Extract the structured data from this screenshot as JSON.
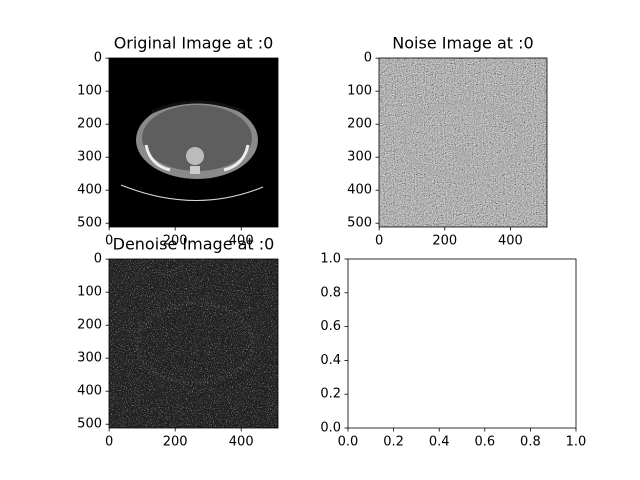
{
  "chart_data": [
    {
      "type": "image",
      "title": "Original Image at :0",
      "xlim": [
        -0.5,
        511.5
      ],
      "ylim": [
        511.5,
        -0.5
      ],
      "xticks": [
        0,
        200,
        400
      ],
      "yticks": [
        0,
        100,
        200,
        300,
        400,
        500
      ]
    },
    {
      "type": "image",
      "title": "Noise Image at :0",
      "xlim": [
        -0.5,
        511.5
      ],
      "ylim": [
        511.5,
        -0.5
      ],
      "xticks": [
        0,
        200,
        400
      ],
      "yticks": [
        0,
        100,
        200,
        300,
        400,
        500
      ]
    },
    {
      "type": "image",
      "title": "Denoise Image at :0",
      "xlim": [
        -0.5,
        511.5
      ],
      "ylim": [
        511.5,
        -0.5
      ],
      "xticks": [
        0,
        200,
        400
      ],
      "yticks": [
        0,
        100,
        200,
        300,
        400,
        500
      ]
    },
    {
      "type": "empty",
      "xlim": [
        0,
        1
      ],
      "ylim": [
        0,
        1
      ],
      "xticks": [
        {
          "value": 0,
          "label": "0.0"
        },
        {
          "value": 0.2,
          "label": "0.2"
        },
        {
          "value": 0.4,
          "label": "0.4"
        },
        {
          "value": 0.6,
          "label": "0.6"
        },
        {
          "value": 0.8,
          "label": "0.8"
        },
        {
          "value": 1,
          "label": "1.0"
        }
      ],
      "yticks": [
        {
          "value": 0,
          "label": "0.0"
        },
        {
          "value": 0.2,
          "label": "0.2"
        },
        {
          "value": 0.4,
          "label": "0.4"
        },
        {
          "value": 0.6,
          "label": "0.6"
        },
        {
          "value": 0.8,
          "label": "0.8"
        },
        {
          "value": 1,
          "label": "1.0"
        }
      ]
    }
  ]
}
